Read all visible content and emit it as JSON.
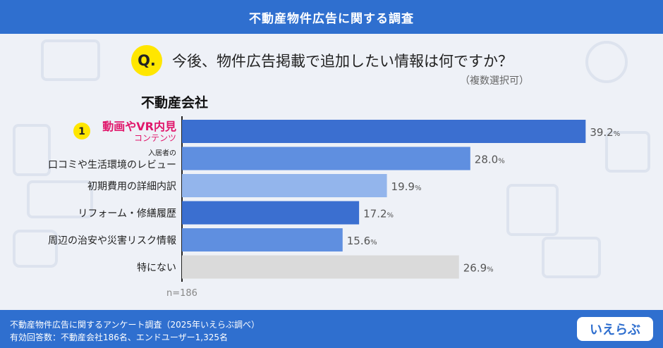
{
  "header": {
    "title": "不動産物件広告に関する調査"
  },
  "question": {
    "badge": "Q.",
    "text": "今後、物件広告掲載で追加したい情報は何ですか？",
    "note": "（複数選択可）"
  },
  "group_title": "不動産会社",
  "sample_size": "n=186",
  "rank_badge": "1",
  "chart_data": {
    "type": "bar",
    "orientation": "horizontal",
    "categories": [
      [
        "動画やVR内見",
        "コンテンツ"
      ],
      [
        "入居者の",
        "口コミや生活環境のレビュー"
      ],
      [
        "初期費用の詳細内訳"
      ],
      [
        "リフォーム・修繕履歴"
      ],
      [
        "周辺の治安や災害リスク情報"
      ],
      [
        "特にない"
      ]
    ],
    "values": [
      39.2,
      28.0,
      19.9,
      17.2,
      15.6,
      26.9
    ],
    "value_labels": [
      "39.2",
      "28.0",
      "19.9",
      "17.2",
      "15.6",
      "26.9"
    ],
    "unit": "%",
    "xlim": [
      0,
      45
    ],
    "colors": [
      "#3b6fd0",
      "#5f8fe0",
      "#93b5ec",
      "#3b6fd0",
      "#5f8fe0",
      "#dadada"
    ],
    "highlight_color": "#e0176b",
    "grid": false
  },
  "footer": {
    "line1": "不動産物件広告に関するアンケート調査（2025年いえらぶ調べ）",
    "line2": "有効回答数：不動産会社186名、エンドユーザー1,325名"
  },
  "logo": {
    "text": "いえらぶ"
  }
}
